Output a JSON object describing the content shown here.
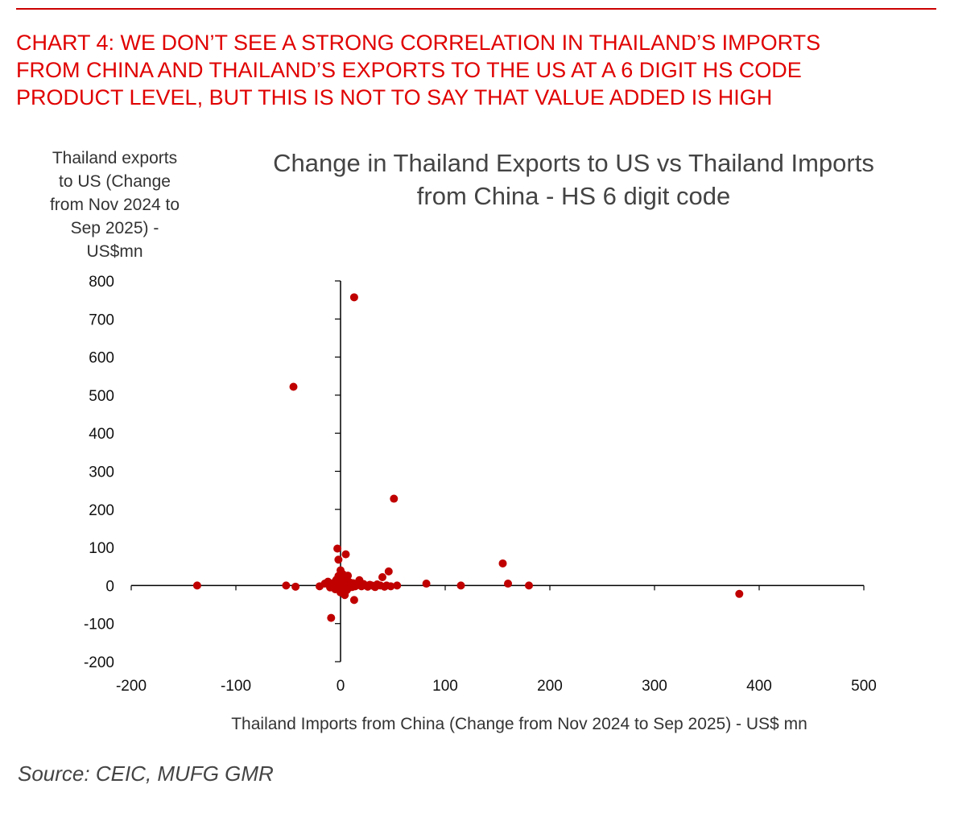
{
  "header": {
    "title_lines": [
      "CHART 4: WE DON’T SEE A STRONG CORRELATION IN THAILAND’S IMPORTS",
      "FROM CHINA AND THAILAND’S EXPORTS TO THE US AT A 6 DIGIT HS CODE",
      "PRODUCT LEVEL, BUT THIS IS NOT TO SAY THAT VALUE ADDED IS HIGH"
    ]
  },
  "source": "Source: CEIC, MUFG GMR",
  "colors": {
    "accent": "#e00000",
    "marker": "#c00000",
    "axis": "#000000"
  },
  "chart_data": {
    "type": "scatter",
    "title_lines": [
      "Change in Thailand Exports to US vs Thailand Imports",
      "from China  - HS 6 digit code"
    ],
    "ylabel_lines": [
      "Thailand exports",
      "to US (Change",
      "from Nov 2024 to",
      "Sep 2025) -",
      "US$mn"
    ],
    "xlabel": "Thailand Imports from China (Change from Nov 2024 to Sep 2025) - US$ mn",
    "xlim": [
      -200,
      500
    ],
    "ylim": [
      -200,
      800
    ],
    "xticks": [
      -200,
      -100,
      0,
      100,
      200,
      300,
      400,
      500
    ],
    "yticks": [
      -200,
      -100,
      0,
      100,
      200,
      300,
      400,
      500,
      600,
      700,
      800
    ],
    "grid": false,
    "legend": "none",
    "points": [
      [
        13,
        757
      ],
      [
        -45,
        522
      ],
      [
        51,
        228
      ],
      [
        155,
        58
      ],
      [
        5,
        82
      ],
      [
        -3,
        97
      ],
      [
        -2,
        68
      ],
      [
        -137,
        0
      ],
      [
        -52,
        0
      ],
      [
        -43,
        -3
      ],
      [
        -20,
        -2
      ],
      [
        -15,
        5
      ],
      [
        -12,
        10
      ],
      [
        -10,
        -5
      ],
      [
        -8,
        3
      ],
      [
        -6,
        8
      ],
      [
        -5,
        -10
      ],
      [
        -4,
        15
      ],
      [
        -3,
        -5
      ],
      [
        -2,
        25
      ],
      [
        -1,
        2
      ],
      [
        0,
        40
      ],
      [
        0,
        -18
      ],
      [
        0,
        5
      ],
      [
        1,
        12
      ],
      [
        1,
        -8
      ],
      [
        2,
        30
      ],
      [
        2,
        0
      ],
      [
        3,
        -15
      ],
      [
        3,
        20
      ],
      [
        4,
        5
      ],
      [
        4,
        -25
      ],
      [
        5,
        10
      ],
      [
        5,
        -3
      ],
      [
        6,
        18
      ],
      [
        6,
        -12
      ],
      [
        7,
        2
      ],
      [
        7,
        26
      ],
      [
        8,
        -6
      ],
      [
        9,
        8
      ],
      [
        10,
        0
      ],
      [
        11,
        -4
      ],
      [
        12,
        6
      ],
      [
        14,
        -2
      ],
      [
        15,
        3
      ],
      [
        17,
        8
      ],
      [
        18,
        14
      ],
      [
        20,
        -2
      ],
      [
        22,
        4
      ],
      [
        24,
        0
      ],
      [
        26,
        -3
      ],
      [
        28,
        2
      ],
      [
        30,
        0
      ],
      [
        33,
        -4
      ],
      [
        35,
        3
      ],
      [
        38,
        0
      ],
      [
        40,
        22
      ],
      [
        42,
        -3
      ],
      [
        44,
        0
      ],
      [
        46,
        37
      ],
      [
        48,
        -2
      ],
      [
        54,
        0
      ],
      [
        -9,
        -85
      ],
      [
        13,
        -38
      ],
      [
        82,
        5
      ],
      [
        115,
        0
      ],
      [
        160,
        5
      ],
      [
        180,
        0
      ],
      [
        381,
        -22
      ]
    ]
  }
}
